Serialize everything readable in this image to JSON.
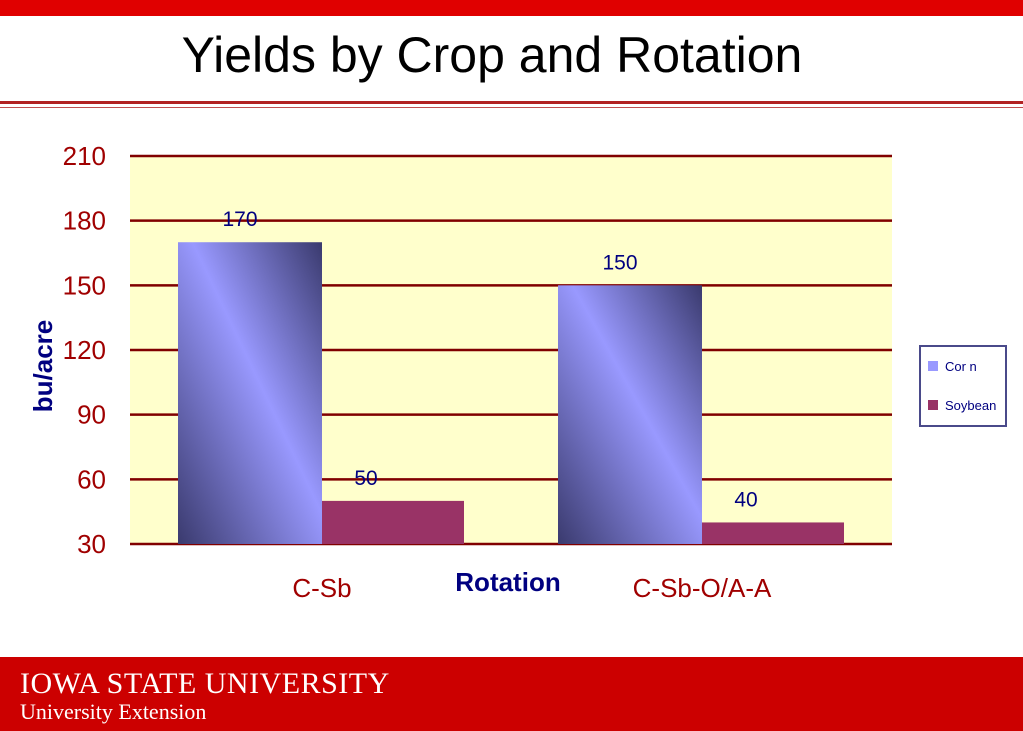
{
  "page": {
    "title": "Yields by Crop and Rotation",
    "footer": {
      "university": "IOWA STATE UNIVERSITY",
      "extension": "University Extension"
    }
  },
  "colors": {
    "top_bar": "#e00000",
    "footer": "#cc0000",
    "plot_bg": "#ffffcc",
    "gridline": "#800000",
    "tick_label": "#a00000",
    "axis_title": "#000080",
    "corn": "#9999ff",
    "soybean": "#993366"
  },
  "chart_data": {
    "type": "bar",
    "categories": [
      "C-Sb",
      "C-Sb-O/A-A"
    ],
    "series": [
      {
        "name": "Cor n",
        "values": [
          170,
          150
        ],
        "data_labels": [
          "170",
          "150"
        ]
      },
      {
        "name": "Soybean",
        "values": [
          50,
          40
        ],
        "data_labels": [
          "50",
          "40"
        ]
      }
    ],
    "xlabel": "Rotation",
    "ylabel": "bu/acre",
    "ylim": [
      30,
      210
    ],
    "yticks": [
      210,
      180,
      150,
      120,
      90,
      60,
      30
    ],
    "grid": true,
    "legend_position": "right"
  }
}
